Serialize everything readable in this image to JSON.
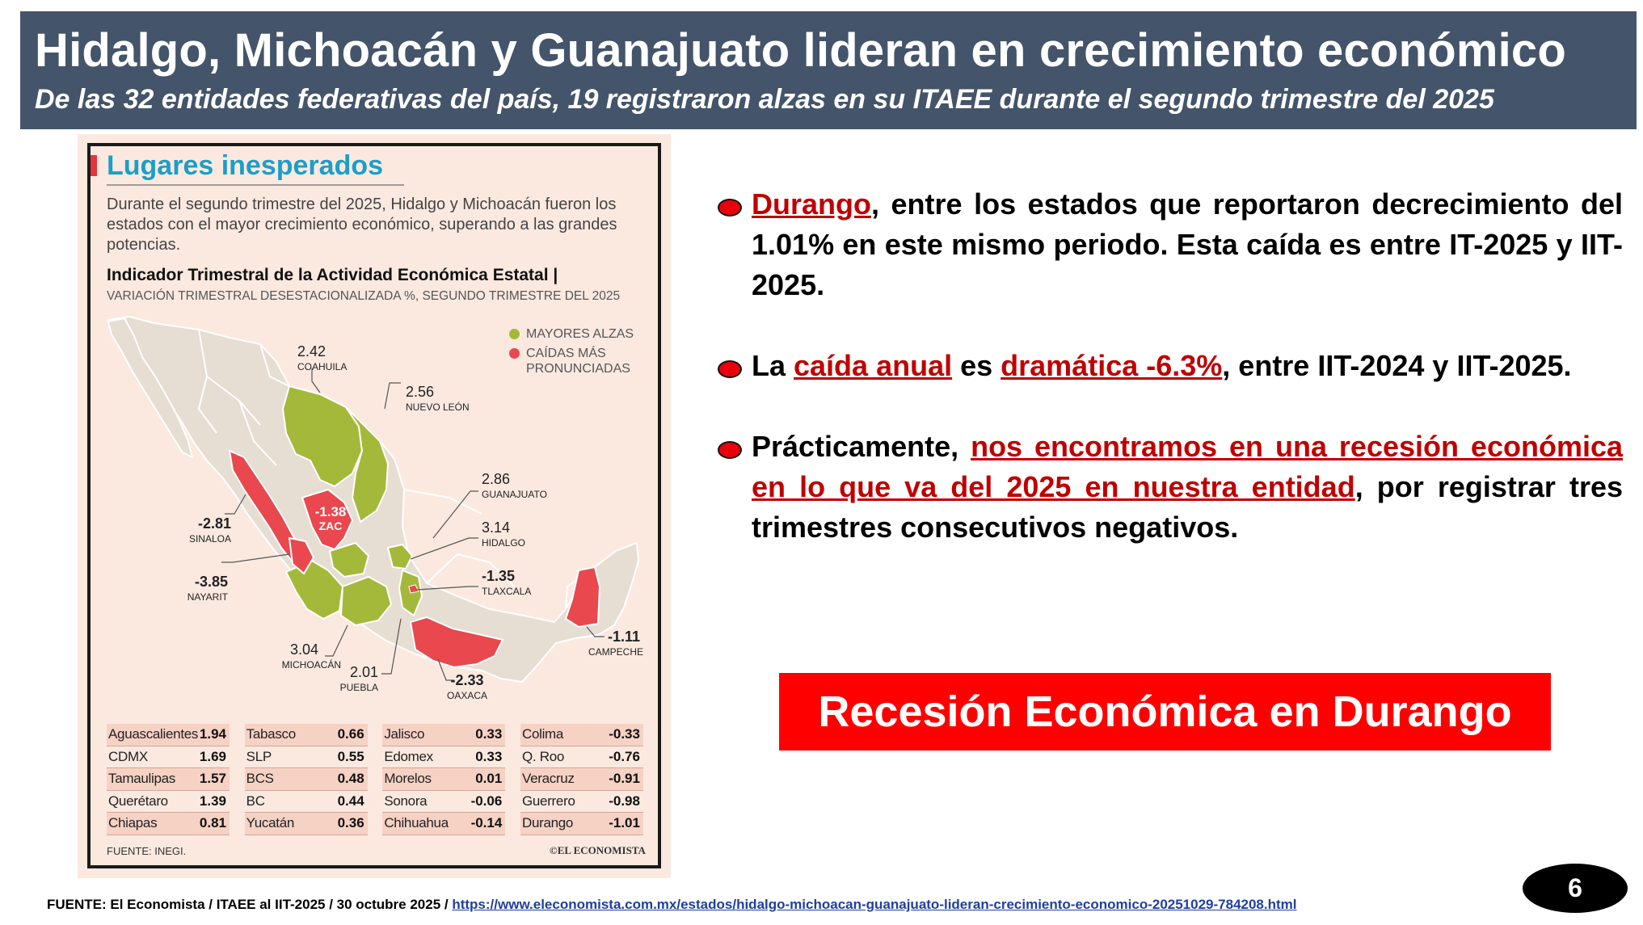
{
  "header": {
    "title": "Hidalgo, Michoacán y Guanajuato lideran en crecimiento económico",
    "subtitle": "De las 32 entidades federativas del país, 19 registraron alzas en su ITAEE durante el segundo trimestre del 2025"
  },
  "infographic": {
    "title": "Lugares inesperados",
    "description": "Durante el segundo trimestre del 2025, Hidalgo y Michoacán fueron los estados con el mayor crecimiento económico, superando a las grandes potencias.",
    "indicator_title": "Indicador Trimestral de la Actividad Económica Estatal |",
    "indicator_subtitle": "VARIACIÓN TRIMESTRAL DESESTACIONALIZADA %, SEGUNDO TRIMESTRE DEL 2025",
    "legend": {
      "up": "MAYORES ALZAS",
      "down_1": "CAÍDAS MÁS",
      "down_2": "PRONUNCIADAS",
      "up_color": "#a4b93a",
      "down_color": "#e8484e"
    },
    "map_labels": {
      "coahuila": {
        "value": "2.42",
        "name": "COAHUILA"
      },
      "nuevo_leon": {
        "value": "2.56",
        "name": "NUEVO LEÓN"
      },
      "guanajuato": {
        "value": "2.86",
        "name": "GUANAJUATO"
      },
      "hidalgo": {
        "value": "3.14",
        "name": "HIDALGO"
      },
      "tlaxcala": {
        "value": "-1.35",
        "name": "TLAXCALA"
      },
      "sinaloa": {
        "value": "-2.81",
        "name": "SINALOA"
      },
      "nayarit": {
        "value": "-3.85",
        "name": "NAYARIT"
      },
      "zacatecas": {
        "value": "-1.38",
        "name": "ZAC"
      },
      "michoacan": {
        "value": "3.04",
        "name": "MICHOACÁN"
      },
      "puebla": {
        "value": "2.01",
        "name": "PUEBLA"
      },
      "oaxaca": {
        "value": "-2.33",
        "name": "OAXACA"
      },
      "campeche": {
        "value": "-1.11",
        "name": "CAMPECHE"
      }
    },
    "table": [
      [
        {
          "name": "Aguascalientes",
          "value": "1.94"
        },
        {
          "name": "CDMX",
          "value": "1.69"
        },
        {
          "name": "Tamaulipas",
          "value": "1.57"
        },
        {
          "name": "Querétaro",
          "value": "1.39"
        },
        {
          "name": "Chiapas",
          "value": "0.81"
        }
      ],
      [
        {
          "name": "Tabasco",
          "value": "0.66"
        },
        {
          "name": "SLP",
          "value": "0.55"
        },
        {
          "name": "BCS",
          "value": "0.48"
        },
        {
          "name": "BC",
          "value": "0.44"
        },
        {
          "name": "Yucatán",
          "value": "0.36"
        }
      ],
      [
        {
          "name": "Jalisco",
          "value": "0.33"
        },
        {
          "name": "Edomex",
          "value": "0.33"
        },
        {
          "name": "Morelos",
          "value": "0.01"
        },
        {
          "name": "Sonora",
          "value": "-0.06"
        },
        {
          "name": "Chihuahua",
          "value": "-0.14"
        }
      ],
      [
        {
          "name": "Colima",
          "value": "-0.33"
        },
        {
          "name": "Q. Roo",
          "value": "-0.76"
        },
        {
          "name": "Veracruz",
          "value": "-0.91"
        },
        {
          "name": "Guerrero",
          "value": "-0.98"
        },
        {
          "name": "Durango",
          "value": "-1.01"
        }
      ]
    ],
    "source": "FUENTE: INEGI.",
    "brand": "©EL ECONOMISTA"
  },
  "bullets": {
    "b1": {
      "hl": "Durango",
      "text": ", entre los estados que reportaron decrecimiento del 1.01% en este mismo periodo. Esta caída es entre IT-2025 y IIT-2025."
    },
    "b2": {
      "pre": "La ",
      "hl1": "caída anual",
      "mid": " es ",
      "hl2": "dramática -6.3%",
      "post": ", entre IIT-2024 y IIT-2025."
    },
    "b3": {
      "pre": "Prácticamente, ",
      "hl": "nos encontramos en una recesión económica en lo que va del 2025 en nuestra entidad",
      "post": ", por registrar tres trimestres consecutivos negativos."
    }
  },
  "banner": "Recesión Económica en Durango",
  "footer": {
    "text": "FUENTE: El Economista / ITAEE al IIT-2025 / 30 octubre 2025 / ",
    "link": "https://www.eleconomista.com.mx/estados/hidalgo-michoacan-guanajuato-lideran-crecimiento-economico-20251029-784208.html"
  },
  "page_number": "6"
}
